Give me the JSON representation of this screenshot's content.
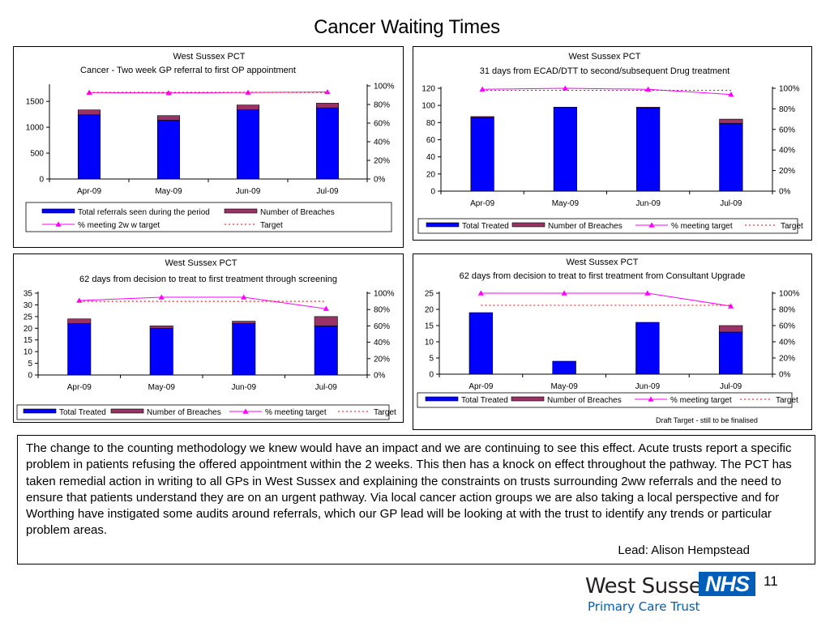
{
  "slide": {
    "title": "Cancer Waiting Times",
    "commentary": "The change to the counting methodology we knew would have an impact and we are continuing to see this effect. Acute trusts report a specific problem in patients refusing the offered appointment within the 2 weeks. This then has a knock on effect throughout the pathway. The PCT has taken remedial action in writing to all GPs in West Sussex and explaining the constraints on trusts surrounding 2ww referrals and the need to ensure that patients understand they are on an urgent pathway. Via local cancer action groups we are also taking a local perspective and for Worthing have instigated some audits around referrals, which our GP lead will be looking at with the trust to identify any trends or particular problem areas.",
    "lead": "Lead: Alison Hempstead",
    "org_name": "West Sussex",
    "org_subtitle": "Primary Care Trust",
    "nhs_label": "NHS",
    "page_number": "11",
    "note": "Draft Target - still to be finalised"
  },
  "chart_data": [
    {
      "type": "bar",
      "stacked": true,
      "title": "West Sussex PCT",
      "subtitle": "Cancer - Two week GP referral to first OP appointment",
      "categories": [
        "Apr-09",
        "May-09",
        "Jun-09",
        "Jul-09"
      ],
      "series": [
        {
          "name": "Total referrals seen during the period",
          "values": [
            1240,
            1135,
            1335,
            1375
          ],
          "color": "#0000ff"
        },
        {
          "name": "Number of Breaches",
          "values": [
            95,
            90,
            95,
            90
          ],
          "color": "#993366"
        }
      ],
      "line_series": [
        {
          "name": "% meeting 2w w  target",
          "values": [
            0.928,
            0.924,
            0.929,
            0.934
          ],
          "color": "#ff00ff",
          "marker": "triangle"
        },
        {
          "name": "Target",
          "values": [
            0.93,
            0.93,
            0.93,
            0.93
          ],
          "color": "#ff0000",
          "dashed": true
        }
      ],
      "ylim": [
        0,
        1800
      ],
      "yticks": [
        0,
        500,
        1000,
        1500
      ],
      "y2lim": [
        0,
        1.0
      ],
      "y2ticks": [
        "0%",
        "20%",
        "40%",
        "60%",
        "80%",
        "100%"
      ],
      "legend": [
        [
          "Total referrals seen during the period",
          "Number of Breaches"
        ],
        [
          "% meeting 2w w  target",
          "Target"
        ]
      ]
    },
    {
      "type": "bar",
      "stacked": true,
      "title": "West Sussex PCT",
      "subtitle": "31 days from ECAD/DTT to second/subsequent Drug treatment",
      "categories": [
        "Apr-09",
        "May-09",
        "Jun-09",
        "Jul-09"
      ],
      "series": [
        {
          "name": "Total Treated",
          "values": [
            86,
            98,
            97,
            79
          ],
          "color": "#0000ff"
        },
        {
          "name": "Number of Breaches",
          "values": [
            1,
            0,
            1,
            5
          ],
          "color": "#993366"
        }
      ],
      "line_series": [
        {
          "name": "% meeting target",
          "values": [
            0.99,
            1.0,
            0.99,
            0.94
          ],
          "color": "#ff00ff",
          "marker": "triangle"
        },
        {
          "name": "Target",
          "values": [
            0.98,
            0.98,
            0.98,
            0.98
          ],
          "color": "#ff0000",
          "dashed": true
        }
      ],
      "ylim": [
        0,
        120
      ],
      "yticks": [
        0,
        20,
        40,
        60,
        80,
        100,
        120
      ],
      "y2lim": [
        0,
        1.0
      ],
      "y2ticks": [
        "0%",
        "20%",
        "40%",
        "60%",
        "80%",
        "100%"
      ],
      "legend": [
        [
          "Total Treated",
          "Number of Breaches",
          "% meeting target",
          "Target"
        ]
      ]
    },
    {
      "type": "bar",
      "stacked": true,
      "title": "West Sussex PCT",
      "subtitle": "62 days from decision to treat to first treatment through screening",
      "categories": [
        "Apr-09",
        "May-09",
        "Jun-09",
        "Jul-09"
      ],
      "series": [
        {
          "name": "Total Treated",
          "values": [
            22,
            20,
            22,
            21
          ],
          "color": "#0000ff"
        },
        {
          "name": "Number of Breaches",
          "values": [
            2,
            1,
            1,
            4
          ],
          "color": "#993366"
        }
      ],
      "line_series": [
        {
          "name": "% meeting target",
          "values": [
            0.91,
            0.95,
            0.95,
            0.81
          ],
          "color": "#ff00ff",
          "marker": "triangle"
        },
        {
          "name": "Target",
          "values": [
            0.9,
            0.9,
            0.9,
            0.9
          ],
          "color": "#ff0000",
          "dashed": true
        }
      ],
      "ylim": [
        0,
        35
      ],
      "yticks": [
        0,
        5,
        10,
        15,
        20,
        25,
        30,
        35
      ],
      "y2lim": [
        0,
        1.0
      ],
      "y2ticks": [
        "0%",
        "20%",
        "40%",
        "60%",
        "80%",
        "100%"
      ],
      "legend": [
        [
          "Total Treated",
          "Number of Breaches",
          "% meeting target",
          "Target"
        ]
      ]
    },
    {
      "type": "bar",
      "stacked": true,
      "title": "West Sussex PCT",
      "subtitle": "62 days from decision to treat to first treatment from Consultant Upgrade",
      "categories": [
        "Apr-09",
        "May-09",
        "Jun-09",
        "Jul-09"
      ],
      "series": [
        {
          "name": "Total Treated",
          "values": [
            19,
            4,
            16,
            13
          ],
          "color": "#0000ff"
        },
        {
          "name": "Number of Breaches",
          "values": [
            0,
            0,
            0,
            2
          ],
          "color": "#993366"
        }
      ],
      "line_series": [
        {
          "name": "% meeting target",
          "values": [
            1.0,
            1.0,
            1.0,
            0.84
          ],
          "color": "#ff00ff",
          "marker": "triangle"
        },
        {
          "name": "Target",
          "values": [
            0.85,
            0.85,
            0.85,
            0.85
          ],
          "color": "#ff0000",
          "dashed": true
        }
      ],
      "ylim": [
        0,
        25
      ],
      "yticks": [
        0,
        5,
        10,
        15,
        20,
        25
      ],
      "y2lim": [
        0,
        1.0
      ],
      "y2ticks": [
        "0%",
        "20%",
        "40%",
        "60%",
        "80%",
        "100%"
      ],
      "legend": [
        [
          "Total Treated",
          "Number of Breaches",
          "% meeting target",
          "Target"
        ]
      ]
    }
  ]
}
